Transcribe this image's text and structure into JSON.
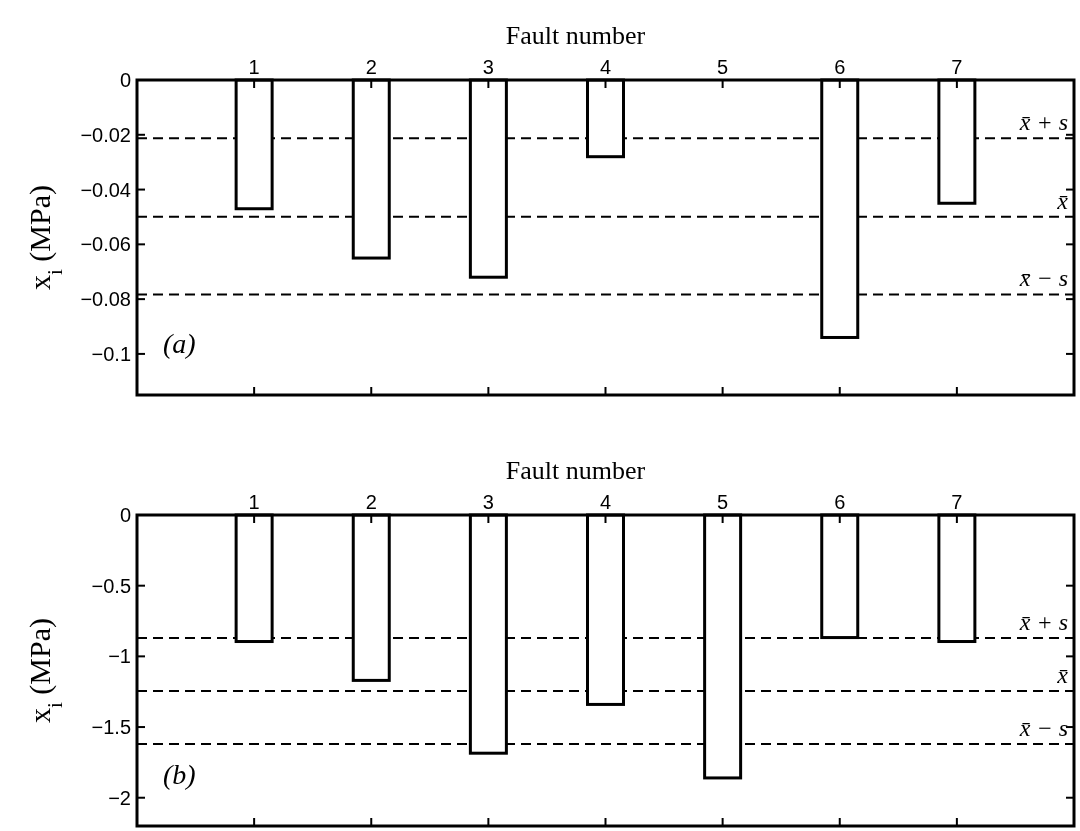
{
  "chart_data": [
    {
      "type": "bar",
      "xlabel": "Fault number",
      "ylabel": "x$_{i}$ (MPa)",
      "categories": [
        "1",
        "2",
        "3",
        "4",
        "5",
        "6",
        "7"
      ],
      "values": [
        -0.047,
        -0.065,
        -0.072,
        -0.028,
        0,
        -0.094,
        -0.045
      ],
      "color": "#ffffff",
      "ylim": [
        -0.115,
        0
      ],
      "yticks": [
        {
          "value": 0,
          "label": "0"
        },
        {
          "value": -0.02,
          "label": "−0.02"
        },
        {
          "value": -0.04,
          "label": "−0.04"
        },
        {
          "value": -0.06,
          "label": "−0.06"
        },
        {
          "value": -0.08,
          "label": "−0.08"
        },
        {
          "value": -0.1,
          "label": "−0.1"
        }
      ],
      "annotations": [
        "(a)"
      ],
      "ref_lines": [
        {
          "axis": "y",
          "value": -0.0213,
          "label": "x̄ + s",
          "line_style": "dashed",
          "color": "#000000"
        },
        {
          "axis": "y",
          "value": -0.0499,
          "label": "x̄",
          "line_style": "dashed",
          "color": "#000000"
        },
        {
          "axis": "y",
          "value": -0.0783,
          "label": "x̄ − s",
          "line_style": "dashed",
          "color": "#000000"
        }
      ]
    },
    {
      "type": "bar",
      "xlabel": "Fault number",
      "ylabel": "x$_{i}$ (MPa)",
      "categories": [
        "1",
        "2",
        "3",
        "4",
        "5",
        "6",
        "7"
      ],
      "values": [
        -0.895,
        -1.17,
        -1.685,
        -1.34,
        -1.86,
        -0.867,
        -0.895
      ],
      "color": "#ffffff",
      "ylim": [
        -2.2,
        0
      ],
      "yticks": [
        {
          "value": 0,
          "label": "0"
        },
        {
          "value": -0.5,
          "label": "−0.5"
        },
        {
          "value": -1,
          "label": "−1"
        },
        {
          "value": -1.5,
          "label": "−1.5"
        },
        {
          "value": -2,
          "label": "−2"
        }
      ],
      "annotations": [
        "(b)"
      ],
      "ref_lines": [
        {
          "axis": "y",
          "value": -0.87,
          "label": "x̄ + s",
          "line_style": "dashed",
          "color": "#000000"
        },
        {
          "axis": "y",
          "value": -1.245,
          "label": "x̄",
          "line_style": "dashed",
          "color": "#000000"
        },
        {
          "axis": "y",
          "value": -1.62,
          "label": "x̄ − s",
          "line_style": "dashed",
          "color": "#000000"
        }
      ]
    }
  ]
}
